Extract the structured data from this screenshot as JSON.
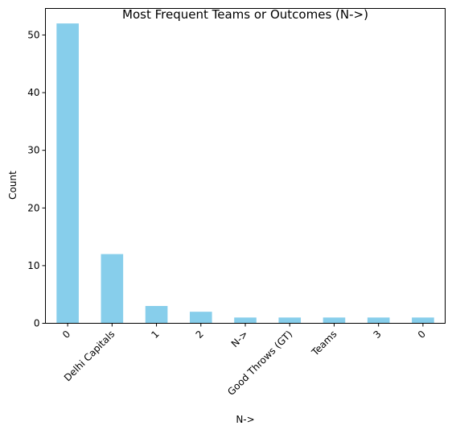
{
  "chart_data": {
    "type": "bar",
    "title": "Most Frequent Teams or Outcomes (N->)",
    "xlabel": "N->",
    "ylabel": "Count",
    "categories": [
      "0",
      "Delhi Capitals",
      "1",
      "2",
      "N->",
      "Good Throws (GT)",
      "Teams",
      "3",
      "0"
    ],
    "values": [
      52,
      12,
      3,
      2,
      1,
      1,
      1,
      1,
      1
    ],
    "ylim": [
      0,
      54.6
    ],
    "yticks": [
      0,
      10,
      20,
      30,
      40,
      50
    ],
    "bar_color": "#87ceeb",
    "grid": false,
    "legend": "none"
  }
}
